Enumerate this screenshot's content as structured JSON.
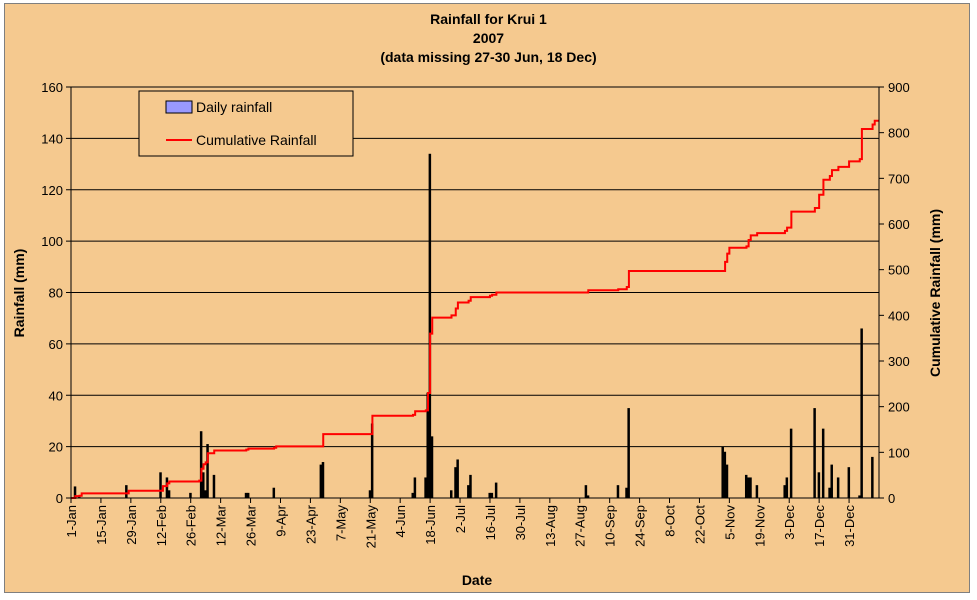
{
  "chart_data": {
    "type": "bar",
    "title": "Rainfall for Krui 1",
    "subtitle": "2007",
    "note": "(data missing 27-30 Jun, 18 Dec)",
    "xlabel": "Date",
    "ylabel": "Rainfall (mm)",
    "y2label": "Cumulative Rainfall (mm)",
    "ylim": [
      0,
      160
    ],
    "y2lim": [
      0,
      900
    ],
    "yticks": [
      0,
      20,
      40,
      60,
      80,
      100,
      120,
      140,
      160
    ],
    "y2ticks": [
      0,
      100,
      200,
      300,
      400,
      500,
      600,
      700,
      800,
      900
    ],
    "xtick_labels": [
      "1-Jan",
      "15-Jan",
      "29-Jan",
      "12-Feb",
      "26-Feb",
      "12-Mar",
      "26-Mar",
      "9-Apr",
      "23-Apr",
      "7-May",
      "21-May",
      "4-Jun",
      "18-Jun",
      "2-Jul",
      "16-Jul",
      "30-Jul",
      "13-Aug",
      "27-Aug",
      "10-Sep",
      "24-Sep",
      "8-Oct",
      "22-Oct",
      "5-Nov",
      "19-Nov",
      "3-Dec",
      "17-Dec",
      "31-Dec"
    ],
    "grid": true,
    "legend_position": "top-left",
    "colors": {
      "bars": "#000000",
      "bar_legend_fill": "#9999ff",
      "cumulative_line": "#ff0000",
      "plot_bg": "#f5c98f"
    },
    "series": [
      {
        "name": "Daily rainfall",
        "type": "bar",
        "points": [
          [
            2,
            4.5
          ],
          [
            4,
            1
          ],
          [
            26,
            5
          ],
          [
            42,
            10
          ],
          [
            45,
            8
          ],
          [
            46,
            3
          ],
          [
            56,
            2
          ],
          [
            61,
            26
          ],
          [
            62,
            10
          ],
          [
            63,
            3
          ],
          [
            64,
            21
          ],
          [
            67,
            9
          ],
          [
            82,
            2
          ],
          [
            83,
            2
          ],
          [
            95,
            4
          ],
          [
            117,
            13
          ],
          [
            118,
            14
          ],
          [
            140,
            3
          ],
          [
            141,
            29
          ],
          [
            160,
            2
          ],
          [
            161,
            8
          ],
          [
            166,
            8
          ],
          [
            167,
            41
          ],
          [
            168,
            134
          ],
          [
            169,
            24
          ],
          [
            178,
            3
          ],
          [
            180,
            12
          ],
          [
            181,
            15
          ],
          [
            186,
            5
          ],
          [
            187,
            9
          ],
          [
            196,
            2
          ],
          [
            197,
            2
          ],
          [
            199,
            6
          ],
          [
            241,
            5
          ],
          [
            242,
            1
          ],
          [
            256,
            5
          ],
          [
            260,
            4
          ],
          [
            261,
            35
          ],
          [
            305,
            20
          ],
          [
            306,
            18
          ],
          [
            307,
            13
          ],
          [
            316,
            9
          ],
          [
            317,
            8
          ],
          [
            318,
            8
          ],
          [
            321,
            5
          ],
          [
            334,
            5
          ],
          [
            335,
            8
          ],
          [
            337,
            27
          ],
          [
            348,
            35
          ],
          [
            350,
            10
          ],
          [
            352,
            27
          ],
          [
            355,
            4
          ],
          [
            356,
            13
          ],
          [
            359,
            8
          ],
          [
            364,
            12
          ],
          [
            369,
            1
          ],
          [
            370,
            66
          ],
          [
            375,
            16
          ]
        ]
      },
      {
        "name": "Cumulative Rainfall",
        "type": "line",
        "points": [
          [
            0,
            0
          ],
          [
            2,
            4
          ],
          [
            4,
            5
          ],
          [
            5,
            10
          ],
          [
            26,
            10
          ],
          [
            27,
            16
          ],
          [
            42,
            16
          ],
          [
            43,
            26
          ],
          [
            45,
            32
          ],
          [
            46,
            36
          ],
          [
            60,
            38
          ],
          [
            61,
            64
          ],
          [
            62,
            74
          ],
          [
            63,
            78
          ],
          [
            64,
            98
          ],
          [
            67,
            104
          ],
          [
            82,
            106
          ],
          [
            83,
            108
          ],
          [
            95,
            110
          ],
          [
            96,
            113
          ],
          [
            117,
            113
          ],
          [
            118,
            140
          ],
          [
            140,
            140
          ],
          [
            141,
            180
          ],
          [
            160,
            182
          ],
          [
            161,
            190
          ],
          [
            166,
            192
          ],
          [
            167,
            230
          ],
          [
            168,
            360
          ],
          [
            169,
            395
          ],
          [
            178,
            400
          ],
          [
            180,
            415
          ],
          [
            181,
            428
          ],
          [
            186,
            432
          ],
          [
            187,
            440
          ],
          [
            196,
            443
          ],
          [
            197,
            445
          ],
          [
            199,
            450
          ],
          [
            241,
            450
          ],
          [
            242,
            455
          ],
          [
            256,
            457
          ],
          [
            260,
            462
          ],
          [
            261,
            497
          ],
          [
            305,
            497
          ],
          [
            306,
            517
          ],
          [
            307,
            535
          ],
          [
            308,
            548
          ],
          [
            316,
            551
          ],
          [
            317,
            565
          ],
          [
            318,
            575
          ],
          [
            321,
            580
          ],
          [
            334,
            585
          ],
          [
            335,
            592
          ],
          [
            337,
            627
          ],
          [
            348,
            635
          ],
          [
            350,
            664
          ],
          [
            352,
            697
          ],
          [
            355,
            705
          ],
          [
            356,
            718
          ],
          [
            359,
            725
          ],
          [
            364,
            737
          ],
          [
            369,
            742
          ],
          [
            370,
            808
          ],
          [
            375,
            818
          ],
          [
            376,
            826
          ],
          [
            378,
            826
          ]
        ]
      }
    ]
  }
}
